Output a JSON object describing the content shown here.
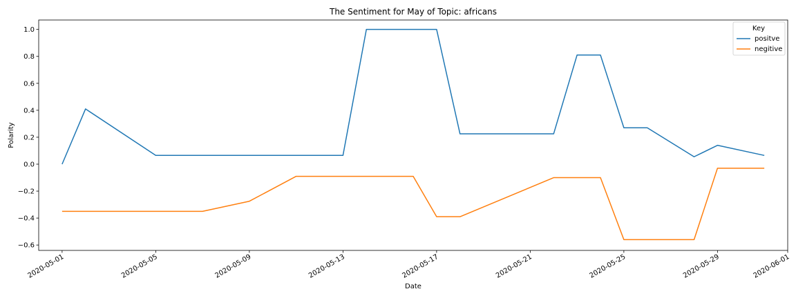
{
  "chart_data": {
    "type": "line",
    "title": "The Sentiment for May of Topic: africans",
    "xlabel": "Date",
    "ylabel": "Polarity",
    "xlim": [
      "2020-04-30",
      "2020-06-01"
    ],
    "ylim": [
      -0.64,
      1.07
    ],
    "x_ticks": [
      "2020-05-01",
      "2020-05-05",
      "2020-05-09",
      "2020-05-13",
      "2020-05-17",
      "2020-05-21",
      "2020-05-25",
      "2020-05-29",
      "2020-06-01"
    ],
    "y_ticks": [
      -0.6,
      -0.4,
      -0.2,
      0.0,
      0.2,
      0.4,
      0.6,
      0.8,
      1.0
    ],
    "y_tick_labels": [
      "−0.6",
      "−0.4",
      "−0.2",
      "0.0",
      "0.2",
      "0.4",
      "0.6",
      "0.8",
      "1.0"
    ],
    "grid": false,
    "legend": {
      "title": "Key",
      "placement": "top-right"
    },
    "series": [
      {
        "name": "positve",
        "color": "#1f77b4",
        "points": [
          [
            "2020-05-01",
            0.0
          ],
          [
            "2020-05-02",
            0.41
          ],
          [
            "2020-05-05",
            0.065
          ],
          [
            "2020-05-13",
            0.065
          ],
          [
            "2020-05-14",
            1.0
          ],
          [
            "2020-05-17",
            1.0
          ],
          [
            "2020-05-18",
            0.225
          ],
          [
            "2020-05-22",
            0.225
          ],
          [
            "2020-05-23",
            0.81
          ],
          [
            "2020-05-24",
            0.81
          ],
          [
            "2020-05-25",
            0.27
          ],
          [
            "2020-05-26",
            0.27
          ],
          [
            "2020-05-28",
            0.055
          ],
          [
            "2020-05-29",
            0.14
          ],
          [
            "2020-05-31",
            0.065
          ]
        ]
      },
      {
        "name": "negitive",
        "color": "#ff7f0e",
        "points": [
          [
            "2020-05-01",
            -0.35
          ],
          [
            "2020-05-07",
            -0.35
          ],
          [
            "2020-05-09",
            -0.275
          ],
          [
            "2020-05-11",
            -0.09
          ],
          [
            "2020-05-16",
            -0.09
          ],
          [
            "2020-05-17",
            -0.39
          ],
          [
            "2020-05-18",
            -0.39
          ],
          [
            "2020-05-22",
            -0.1
          ],
          [
            "2020-05-24",
            -0.1
          ],
          [
            "2020-05-25",
            -0.56
          ],
          [
            "2020-05-28",
            -0.56
          ],
          [
            "2020-05-29",
            -0.03
          ],
          [
            "2020-05-31",
            -0.03
          ]
        ]
      }
    ]
  }
}
